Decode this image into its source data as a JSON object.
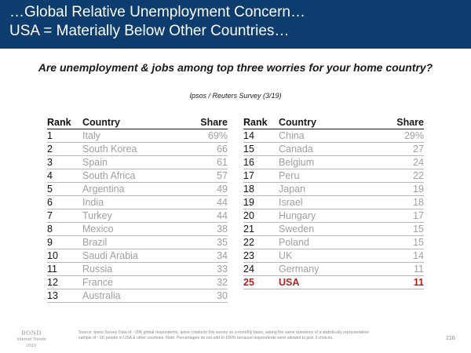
{
  "header": {
    "line1": "…Global Relative Unemployment Concern…",
    "line2": "USA = Materially Below Other Countries…"
  },
  "question": "Are unemployment & jobs among top three worries for your home country?",
  "survey_source": "Ipsos / Reuters Survey (3/19)",
  "chart_data": {
    "type": "table",
    "columns": [
      "Rank",
      "Country",
      "Share"
    ],
    "rows": [
      {
        "rank": "1",
        "country": "Italy",
        "share": "69%"
      },
      {
        "rank": "2",
        "country": "South Korea",
        "share": "66"
      },
      {
        "rank": "3",
        "country": "Spain",
        "share": "61"
      },
      {
        "rank": "4",
        "country": "South Africa",
        "share": "57"
      },
      {
        "rank": "5",
        "country": "Argentina",
        "share": "49"
      },
      {
        "rank": "6",
        "country": "India",
        "share": "44"
      },
      {
        "rank": "7",
        "country": "Turkey",
        "share": "44"
      },
      {
        "rank": "8",
        "country": "Mexico",
        "share": "38"
      },
      {
        "rank": "9",
        "country": "Brazil",
        "share": "35"
      },
      {
        "rank": "10",
        "country": "Saudi Arabia",
        "share": "34"
      },
      {
        "rank": "11",
        "country": "Russia",
        "share": "33"
      },
      {
        "rank": "12",
        "country": "France",
        "share": "32"
      },
      {
        "rank": "13",
        "country": "Australia",
        "share": "30"
      },
      {
        "rank": "14",
        "country": "China",
        "share": "29%"
      },
      {
        "rank": "15",
        "country": "Canada",
        "share": "27"
      },
      {
        "rank": "16",
        "country": "Belgium",
        "share": "24"
      },
      {
        "rank": "17",
        "country": "Peru",
        "share": "22"
      },
      {
        "rank": "18",
        "country": "Japan",
        "share": "19"
      },
      {
        "rank": "19",
        "country": "Israel",
        "share": "18"
      },
      {
        "rank": "20",
        "country": "Hungary",
        "share": "17"
      },
      {
        "rank": "21",
        "country": "Sweden",
        "share": "15"
      },
      {
        "rank": "22",
        "country": "Poland",
        "share": "15"
      },
      {
        "rank": "23",
        "country": "UK",
        "share": "14"
      },
      {
        "rank": "24",
        "country": "Germany",
        "share": "11"
      },
      {
        "rank": "25",
        "country": "USA",
        "share": "11",
        "highlight": true
      }
    ],
    "highlight_color": "#b22222"
  },
  "footnote": {
    "line1": "Source: Ipsos Survey Data of ~20K global respondents. Ipsos conducts this survey on a monthly basis, asking the same questions of a statistically representative",
    "line2": "sample of ~1K people in USA & other countries. Note: Percentages do not add to 100% because respondents were allowed to pick 3 choices."
  },
  "branding": {
    "logo_text": "BOND",
    "line1": "Internet Trends",
    "line2": "2019"
  },
  "page_number": "216",
  "colors": {
    "header_bg": "#0d3c6e",
    "muted_text": "#a0a0a0"
  }
}
